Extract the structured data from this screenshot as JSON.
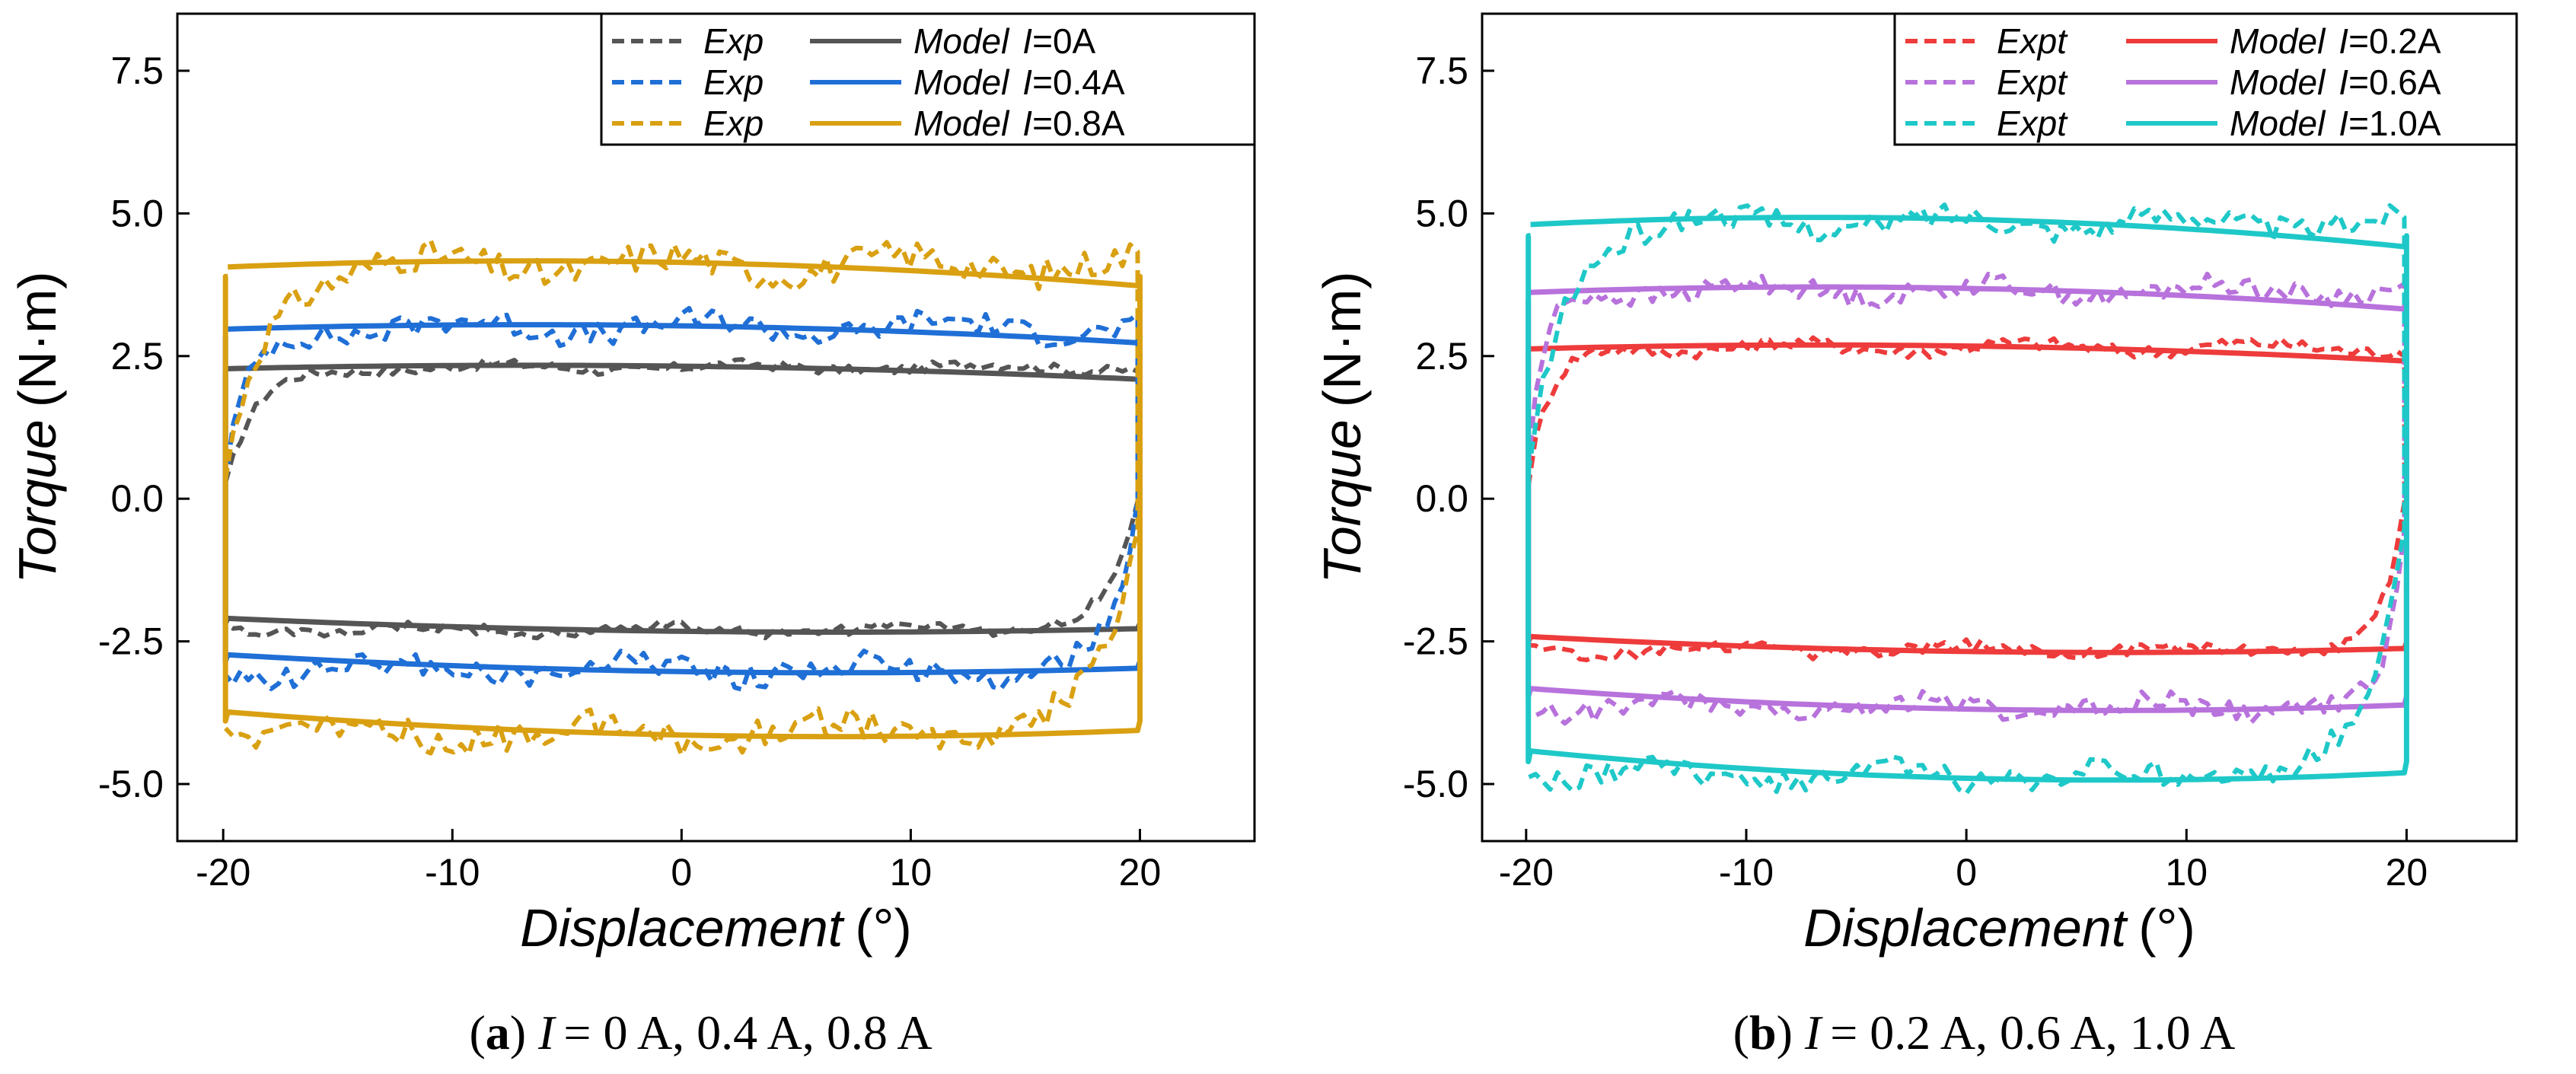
{
  "chart_data": [
    {
      "type": "line",
      "panel_label": "a",
      "caption": "= 0 A, 0.4 A, 0.8 A",
      "caption_var": "I",
      "xlabel": "Displacement",
      "xunit": "(°)",
      "ylabel": "Torque",
      "yunit": "(N·m)",
      "xlim": [
        -22,
        25
      ],
      "ylim": [
        -6,
        8.5
      ],
      "xticks": [
        -20,
        -10,
        0,
        10,
        20
      ],
      "xtick_labels": [
        "-20",
        "-10",
        "0",
        "10",
        "20"
      ],
      "yticks": [
        -5,
        -2.5,
        0,
        2.5,
        5,
        7.5
      ],
      "ytick_labels": [
        "-5.0",
        "-2.5",
        "0.0",
        "2.5",
        "5.0",
        "7.5"
      ],
      "series": [
        {
          "name": "Exp",
          "current": "=0A",
          "model_name": "Model",
          "var": "I",
          "color": "#555555",
          "loop_height": 2.3,
          "exp_noise": 0.15,
          "sharp": 0.15
        },
        {
          "name": "Exp",
          "current": "=0.4A",
          "model_name": "Model",
          "var": "I",
          "color": "#1f6fd6",
          "loop_height": 3.0,
          "exp_noise": 0.35,
          "sharp": 0.2
        },
        {
          "name": "Exp",
          "current": "=0.8A",
          "model_name": "Model",
          "var": "I",
          "color": "#d9a012",
          "loop_height": 4.1,
          "exp_noise": 0.45,
          "sharp": 0.12
        }
      ]
    },
    {
      "type": "line",
      "panel_label": "b",
      "caption": "= 0.2 A, 0.6 A, 1.0 A",
      "caption_var": "I",
      "xlabel": "Displacement",
      "xunit": "(°)",
      "ylabel": "Torque",
      "yunit": "(N·m)",
      "xlim": [
        -22,
        25
      ],
      "ylim": [
        -6,
        8.5
      ],
      "xticks": [
        -20,
        -10,
        0,
        10,
        20
      ],
      "xtick_labels": [
        "-20",
        "-10",
        "0",
        "10",
        "20"
      ],
      "yticks": [
        -5,
        -2.5,
        0,
        2.5,
        5,
        7.5
      ],
      "ytick_labels": [
        "-5.0",
        "-2.5",
        "0.0",
        "2.5",
        "5.0",
        "7.5"
      ],
      "series": [
        {
          "name": "Expt",
          "current": "=0.2A",
          "model_name": "Model",
          "var": "I",
          "color": "#ee3b3b",
          "loop_height": 2.65,
          "exp_noise": 0.2,
          "sharp": 0.2
        },
        {
          "name": "Expt",
          "current": "=0.6A",
          "model_name": "Model",
          "var": "I",
          "color": "#b872dc",
          "loop_height": 3.65,
          "exp_noise": 0.3,
          "sharp": 0.25
        },
        {
          "name": "Expt",
          "current": "=1.0A",
          "model_name": "Model",
          "var": "I",
          "color": "#1fc8c8",
          "loop_height": 4.85,
          "exp_noise": 0.35,
          "sharp": 0.12
        }
      ]
    }
  ]
}
